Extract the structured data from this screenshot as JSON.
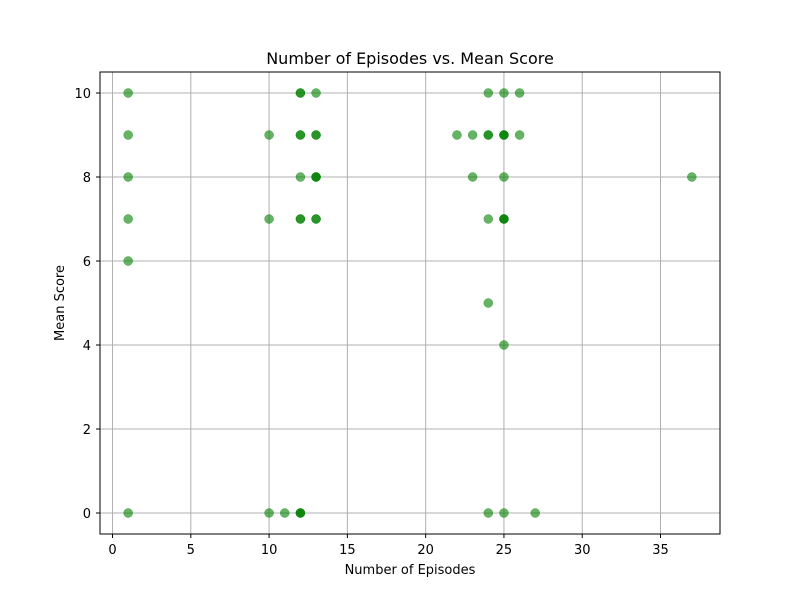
{
  "chart_data": {
    "type": "scatter",
    "title": "Number of Episodes vs. Mean Score",
    "xlabel": "Number of Episodes",
    "ylabel": "Mean Score",
    "xlim": [
      -0.8,
      38.8
    ],
    "ylim": [
      -0.5,
      10.5
    ],
    "xticks": [
      0,
      5,
      10,
      15,
      20,
      25,
      30,
      35
    ],
    "yticks": [
      0,
      2,
      4,
      6,
      8,
      10
    ],
    "grid": true,
    "marker_color": "#008000",
    "marker_alpha": 0.6,
    "points": [
      {
        "x": 1,
        "y": 10
      },
      {
        "x": 1,
        "y": 9
      },
      {
        "x": 1,
        "y": 8
      },
      {
        "x": 1,
        "y": 7
      },
      {
        "x": 1,
        "y": 6
      },
      {
        "x": 1,
        "y": 0
      },
      {
        "x": 10,
        "y": 9
      },
      {
        "x": 10,
        "y": 7
      },
      {
        "x": 10,
        "y": 0
      },
      {
        "x": 11,
        "y": 0
      },
      {
        "x": 12,
        "y": 10
      },
      {
        "x": 12,
        "y": 10
      },
      {
        "x": 12,
        "y": 9
      },
      {
        "x": 12,
        "y": 9
      },
      {
        "x": 12,
        "y": 8
      },
      {
        "x": 12,
        "y": 7
      },
      {
        "x": 12,
        "y": 7
      },
      {
        "x": 12,
        "y": 0
      },
      {
        "x": 12,
        "y": 0
      },
      {
        "x": 12,
        "y": 0
      },
      {
        "x": 13,
        "y": 10
      },
      {
        "x": 13,
        "y": 9
      },
      {
        "x": 13,
        "y": 9
      },
      {
        "x": 13,
        "y": 8
      },
      {
        "x": 13,
        "y": 8
      },
      {
        "x": 13,
        "y": 8
      },
      {
        "x": 13,
        "y": 7
      },
      {
        "x": 13,
        "y": 7
      },
      {
        "x": 22,
        "y": 9
      },
      {
        "x": 23,
        "y": 9
      },
      {
        "x": 23,
        "y": 8
      },
      {
        "x": 24,
        "y": 10
      },
      {
        "x": 24,
        "y": 9
      },
      {
        "x": 24,
        "y": 9
      },
      {
        "x": 24,
        "y": 7
      },
      {
        "x": 24,
        "y": 5
      },
      {
        "x": 24,
        "y": 0
      },
      {
        "x": 25,
        "y": 10
      },
      {
        "x": 25,
        "y": 9
      },
      {
        "x": 25,
        "y": 9
      },
      {
        "x": 25,
        "y": 9
      },
      {
        "x": 25,
        "y": 8
      },
      {
        "x": 25,
        "y": 7
      },
      {
        "x": 25,
        "y": 7
      },
      {
        "x": 25,
        "y": 7
      },
      {
        "x": 25,
        "y": 4
      },
      {
        "x": 25,
        "y": 0
      },
      {
        "x": 26,
        "y": 10
      },
      {
        "x": 26,
        "y": 9
      },
      {
        "x": 27,
        "y": 0
      },
      {
        "x": 37,
        "y": 8
      }
    ]
  }
}
